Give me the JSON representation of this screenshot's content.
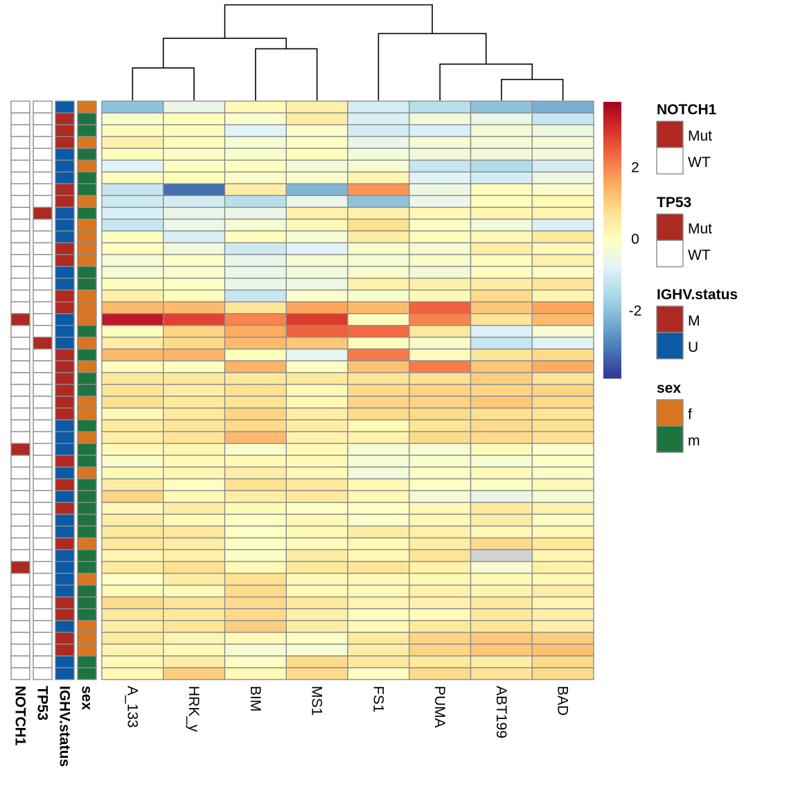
{
  "chart_data": {
    "type": "heatmap",
    "title": "",
    "columns": [
      "A_133",
      "HRK_y",
      "BIM",
      "MS1",
      "FS1",
      "PUMA",
      "ABT199",
      "BAD"
    ],
    "color_scale": {
      "palette": "RdYlBu (reversed)",
      "min": -3.9,
      "max": 3.8,
      "ticks": [
        2,
        0,
        -2
      ],
      "tick_labels": [
        "2",
        "0",
        "-2"
      ],
      "colors": [
        "#313695",
        "#4575b4",
        "#74add1",
        "#abd9e9",
        "#e0f3f8",
        "#ffffbf",
        "#fee090",
        "#fdae61",
        "#f46d43",
        "#d73027",
        "#a50026"
      ],
      "na_color": "#d3d3d3"
    },
    "column_dendrogram": {
      "merges": [
        {
          "left": "A_133",
          "right": "HRK_y",
          "height": 0.34
        },
        {
          "left": "BIM",
          "right": "MS1",
          "height": 0.54
        },
        {
          "left": "A_133+HRK_y",
          "right": "BIM+MS1",
          "height": 0.65
        },
        {
          "left": "ABT199",
          "right": "BAD",
          "height": 0.22
        },
        {
          "left": "PUMA",
          "right": "ABT199+BAD",
          "height": 0.38
        },
        {
          "left": "FS1",
          "right": "PUMA+ABT199+BAD",
          "height": 0.7
        },
        {
          "left": "A_133+HRK_y+BIM+MS1",
          "right": "FS1+PUMA+ABT199+BAD",
          "height": 1.0
        }
      ]
    },
    "annotation_tracks": [
      {
        "name": "NOTCH1",
        "levels": [
          "Mut",
          "WT"
        ],
        "colors": {
          "Mut": "#ad2922",
          "WT": "#ffffff"
        }
      },
      {
        "name": "TP53",
        "levels": [
          "Mut",
          "WT"
        ],
        "colors": {
          "Mut": "#ad2922",
          "WT": "#ffffff"
        }
      },
      {
        "name": "IGHV.status",
        "levels": [
          "M",
          "U"
        ],
        "colors": {
          "M": "#ad2922",
          "U": "#0c5aa6"
        }
      },
      {
        "name": "sex",
        "levels": [
          "f",
          "m"
        ],
        "colors": {
          "f": "#d97621",
          "m": "#1e7440"
        }
      }
    ],
    "annotations": {
      "NOTCH1": [
        "WT",
        "WT",
        "WT",
        "WT",
        "WT",
        "WT",
        "WT",
        "WT",
        "WT",
        "WT",
        "WT",
        "WT",
        "WT",
        "WT",
        "WT",
        "WT",
        "WT",
        "WT",
        "Mut",
        "WT",
        "WT",
        "WT",
        "WT",
        "WT",
        "WT",
        "WT",
        "WT",
        "WT",
        "WT",
        "Mut",
        "WT",
        "WT",
        "WT",
        "WT",
        "WT",
        "WT",
        "WT",
        "WT",
        "WT",
        "Mut",
        "WT",
        "WT",
        "WT",
        "WT",
        "WT",
        "WT",
        "WT",
        "WT",
        "WT"
      ],
      "TP53": [
        "WT",
        "WT",
        "WT",
        "WT",
        "WT",
        "WT",
        "WT",
        "WT",
        "WT",
        "Mut",
        "WT",
        "WT",
        "WT",
        "WT",
        "WT",
        "WT",
        "WT",
        "WT",
        "WT",
        "WT",
        "Mut",
        "WT",
        "WT",
        "WT",
        "WT",
        "WT",
        "WT",
        "WT",
        "WT",
        "WT",
        "WT",
        "WT",
        "WT",
        "WT",
        "WT",
        "WT",
        "WT",
        "WT",
        "WT",
        "WT",
        "WT",
        "WT",
        "WT",
        "WT",
        "WT",
        "WT",
        "WT",
        "WT",
        "WT"
      ],
      "IGHV.status": [
        "U",
        "M",
        "M",
        "M",
        "U",
        "U",
        "U",
        "M",
        "M",
        "U",
        "U",
        "U",
        "M",
        "M",
        "U",
        "U",
        "M",
        "M",
        "U",
        "U",
        "U",
        "M",
        "M",
        "M",
        "M",
        "M",
        "M",
        "U",
        "U",
        "U",
        "M",
        "U",
        "M",
        "U",
        "M",
        "U",
        "U",
        "M",
        "U",
        "U",
        "U",
        "U",
        "M",
        "M",
        "U",
        "M",
        "M",
        "U",
        "U"
      ],
      "sex": [
        "f",
        "m",
        "m",
        "f",
        "m",
        "f",
        "m",
        "m",
        "f",
        "m",
        "f",
        "f",
        "f",
        "f",
        "m",
        "m",
        "f",
        "f",
        "f",
        "m",
        "f",
        "m",
        "f",
        "m",
        "m",
        "f",
        "f",
        "m",
        "f",
        "m",
        "m",
        "f",
        "m",
        "m",
        "m",
        "m",
        "m",
        "f",
        "m",
        "m",
        "f",
        "m",
        "m",
        "m",
        "f",
        "f",
        "f",
        "m",
        "m"
      ]
    },
    "values": [
      [
        -2.0,
        -0.6,
        0.1,
        0.3,
        -1.0,
        -1.4,
        -2.0,
        -2.3
      ],
      [
        -0.2,
        0.0,
        -0.2,
        0.4,
        -0.9,
        -0.4,
        -0.6,
        -1.2
      ],
      [
        0.0,
        0.0,
        -0.8,
        -0.2,
        -1.0,
        -0.9,
        -0.3,
        -0.5
      ],
      [
        0.3,
        0.0,
        -0.3,
        -0.1,
        -0.6,
        -0.3,
        -0.3,
        -0.3
      ],
      [
        0.0,
        -0.1,
        -0.2,
        0.0,
        -0.4,
        -0.4,
        -0.4,
        -0.4
      ],
      [
        -0.8,
        -0.1,
        0.0,
        -0.4,
        -0.3,
        -1.2,
        -1.5,
        -1.0
      ],
      [
        0.0,
        0.0,
        -0.2,
        -0.2,
        0.2,
        -0.8,
        -1.0,
        -0.5
      ],
      [
        -1.2,
        -3.2,
        0.4,
        -2.2,
        1.8,
        -0.5,
        0.0,
        -0.2
      ],
      [
        -1.1,
        -1.0,
        -1.4,
        -0.6,
        -2.0,
        -0.6,
        0.0,
        0.1
      ],
      [
        -0.9,
        -0.6,
        -0.6,
        0.3,
        0.3,
        0.1,
        0.2,
        0.2
      ],
      [
        -1.2,
        -0.6,
        -0.3,
        0.1,
        0.7,
        -0.1,
        -0.4,
        -0.9
      ],
      [
        0.0,
        -0.9,
        0.0,
        -0.3,
        0.4,
        0.0,
        0.1,
        0.5
      ],
      [
        0.0,
        -0.4,
        -1.1,
        -0.8,
        -0.2,
        -0.3,
        0.4,
        0.1
      ],
      [
        -0.3,
        -0.1,
        -0.6,
        -0.3,
        -0.3,
        -0.2,
        0.0,
        0.3
      ],
      [
        -0.3,
        -0.2,
        -0.6,
        -0.4,
        -0.2,
        -0.4,
        0.0,
        -0.1
      ],
      [
        0.0,
        -0.1,
        -0.6,
        -0.5,
        0.3,
        0.3,
        0.4,
        0.6
      ],
      [
        0.3,
        0.0,
        -1.2,
        -0.2,
        -0.2,
        0.1,
        0.8,
        0.2
      ],
      [
        1.3,
        1.3,
        0.6,
        1.6,
        1.3,
        2.4,
        1.1,
        1.6
      ],
      [
        3.4,
        2.8,
        2.0,
        2.9,
        0.0,
        2.0,
        0.6,
        1.3
      ],
      [
        0.0,
        0.9,
        1.5,
        2.4,
        2.3,
        0.5,
        -0.9,
        -0.3
      ],
      [
        0.4,
        0.8,
        1.3,
        1.1,
        0.0,
        -0.2,
        -1.2,
        -0.8
      ],
      [
        1.3,
        1.4,
        0.0,
        -0.7,
        2.1,
        0.0,
        0.6,
        0.8
      ],
      [
        0.0,
        -0.1,
        1.4,
        -0.1,
        1.2,
        2.1,
        1.1,
        1.5
      ],
      [
        0.5,
        0.5,
        0.5,
        0.5,
        0.6,
        0.7,
        1.0,
        0.6
      ],
      [
        0.6,
        0.4,
        0.7,
        0.1,
        0.8,
        0.9,
        0.9,
        0.9
      ],
      [
        0.7,
        0.5,
        0.6,
        0.1,
        0.9,
        0.9,
        1.1,
        0.8
      ],
      [
        0.1,
        0.5,
        0.9,
        0.4,
        0.8,
        0.8,
        0.7,
        0.6
      ],
      [
        0.5,
        0.6,
        0.8,
        0.4,
        0.1,
        0.6,
        0.8,
        0.7
      ],
      [
        0.4,
        0.6,
        1.3,
        0.3,
        0.3,
        0.8,
        0.8,
        0.7
      ],
      [
        0.1,
        0.2,
        -0.2,
        0.1,
        -0.3,
        -0.3,
        0.1,
        -0.2
      ],
      [
        -0.2,
        0.1,
        0.1,
        0.1,
        -0.3,
        -0.2,
        -0.3,
        -0.1
      ],
      [
        0.1,
        0.2,
        0.4,
        0.1,
        -0.4,
        -0.1,
        0.1,
        -0.2
      ],
      [
        0.4,
        -0.1,
        0.7,
        0.5,
        0.1,
        -0.1,
        -0.1,
        0.1
      ],
      [
        0.9,
        0.1,
        0.4,
        0.5,
        0.1,
        -0.3,
        -0.6,
        -0.3
      ],
      [
        0.1,
        0.4,
        0.1,
        -0.1,
        -0.1,
        0.1,
        0.5,
        0.3
      ],
      [
        0.4,
        0.1,
        -0.1,
        0.1,
        -0.2,
        0.1,
        0.4,
        -0.1
      ],
      [
        0.5,
        0.5,
        -0.1,
        0.1,
        0.4,
        0.3,
        0.1,
        0.1
      ],
      [
        0.5,
        0.4,
        -0.1,
        0.0,
        0.1,
        0.4,
        0.8,
        0.5
      ],
      [
        0.2,
        0.3,
        -0.2,
        0.4,
        0.1,
        0.6,
        null,
        0.2
      ],
      [
        0.5,
        0.7,
        0.1,
        0.5,
        0.6,
        0.3,
        -0.3,
        0.3
      ],
      [
        -0.1,
        0.4,
        0.7,
        0.1,
        0.1,
        0.1,
        0.1,
        0.1
      ],
      [
        0.1,
        0.1,
        0.8,
        0.1,
        0.1,
        0.3,
        0.2,
        0.4
      ],
      [
        0.8,
        0.6,
        0.8,
        0.5,
        0.2,
        0.3,
        0.5,
        0.2
      ],
      [
        0.5,
        0.5,
        0.8,
        0.3,
        0.0,
        0.0,
        0.5,
        0.3
      ],
      [
        0.4,
        0.6,
        1.0,
        0.4,
        0.1,
        0.5,
        0.6,
        0.3
      ],
      [
        0.5,
        0.2,
        0.1,
        -0.1,
        0.5,
        0.9,
        1.1,
        1.0
      ],
      [
        0.2,
        0.1,
        -0.3,
        -0.3,
        0.4,
        0.9,
        1.1,
        1.2
      ],
      [
        0.1,
        0.4,
        -0.1,
        0.8,
        0.5,
        0.5,
        0.4,
        0.8
      ],
      [
        0.1,
        1.0,
        0.1,
        0.8,
        -0.1,
        0.8,
        0.6,
        0.8
      ]
    ],
    "legend": {
      "placement": "right",
      "groups": [
        {
          "title": "NOTCH1",
          "items": [
            {
              "label": "Mut",
              "color": "#ad2922"
            },
            {
              "label": "WT",
              "color": "#ffffff"
            }
          ]
        },
        {
          "title": "TP53",
          "items": [
            {
              "label": "Mut",
              "color": "#ad2922"
            },
            {
              "label": "WT",
              "color": "#ffffff"
            }
          ]
        },
        {
          "title": "IGHV.status",
          "items": [
            {
              "label": "M",
              "color": "#ad2922"
            },
            {
              "label": "U",
              "color": "#0c5aa6"
            }
          ]
        },
        {
          "title": "sex",
          "items": [
            {
              "label": "f",
              "color": "#d97621"
            },
            {
              "label": "m",
              "color": "#1e7440"
            }
          ]
        }
      ]
    },
    "grid": true,
    "border_color": "#8c8c8c"
  }
}
